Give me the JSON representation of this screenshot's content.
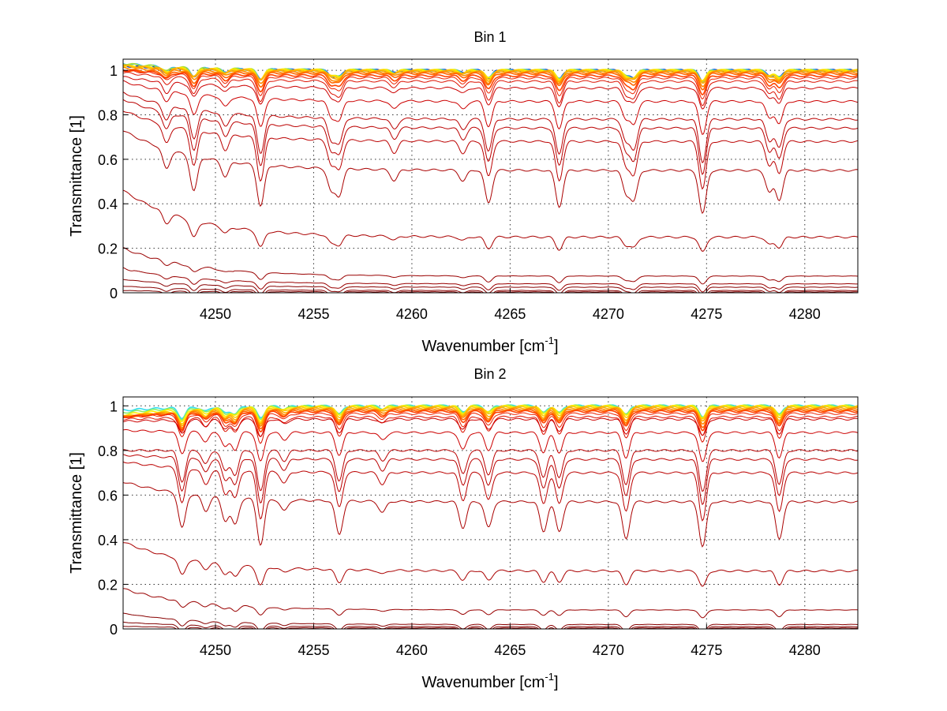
{
  "chart_data": [
    {
      "type": "line",
      "title": "Bin 1",
      "xlabel": {
        "main": "Wavenumber [cm",
        "sup": "-1",
        "end": "]"
      },
      "ylabel": "Transmittance [1]",
      "xlim": [
        4245.3,
        4282.7
      ],
      "ylim": [
        0,
        1.05
      ],
      "xticks": [
        4250,
        4255,
        4260,
        4265,
        4270,
        4275,
        4280
      ],
      "yticks": [
        0,
        0.2,
        0.4,
        0.6,
        0.8,
        1
      ],
      "ytick_labels": [
        "0",
        "0.2",
        "0.4",
        "0.6",
        "0.8",
        "1"
      ],
      "grid": true,
      "absorption_lines": [
        [
          4247.5,
          0.5
        ],
        [
          4248.9,
          0.9
        ],
        [
          4250.5,
          0.4
        ],
        [
          4252.3,
          1.1
        ],
        [
          4255.9,
          0.6
        ],
        [
          4256.3,
          0.7
        ],
        [
          4259.1,
          0.3
        ],
        [
          4262.6,
          0.3
        ],
        [
          4263.9,
          0.9
        ],
        [
          4267.5,
          1.0
        ],
        [
          4270.9,
          0.6
        ],
        [
          4271.3,
          0.8
        ],
        [
          4274.8,
          1.2
        ],
        [
          4278.2,
          0.6
        ],
        [
          4278.7,
          0.8
        ]
      ],
      "series": [
        {
          "left": 1.02,
          "right": 1.0,
          "color": "#0033cc"
        },
        {
          "left": 1.03,
          "right": 1.0,
          "color": "#33bbee"
        },
        {
          "left": 1.03,
          "right": 1.0,
          "color": "#aadd33"
        },
        {
          "left": 1.02,
          "right": 1.0,
          "color": "#ffee00"
        },
        {
          "left": 1.02,
          "right": 0.998,
          "color": "#ffcc00"
        },
        {
          "left": 1.02,
          "right": 0.995,
          "color": "#ffaa00"
        },
        {
          "left": 1.01,
          "right": 0.99,
          "color": "#ff8800"
        },
        {
          "left": 1.0,
          "right": 0.985,
          "color": "#ff6600"
        },
        {
          "left": 1.0,
          "right": 0.975,
          "color": "#ff4400"
        },
        {
          "left": 1.0,
          "right": 0.965,
          "color": "#ee2200"
        },
        {
          "left": 0.99,
          "right": 0.95,
          "color": "#dd1100"
        },
        {
          "left": 0.97,
          "right": 0.92,
          "color": "#cc0000"
        },
        {
          "left": 0.95,
          "right": 0.86,
          "color": "#cc0000"
        },
        {
          "left": 0.9,
          "right": 0.78,
          "color": "#bb0000"
        },
        {
          "left": 0.87,
          "right": 0.74,
          "color": "#bb0000"
        },
        {
          "left": 0.82,
          "right": 0.68,
          "color": "#bb0000"
        },
        {
          "left": 0.73,
          "right": 0.55,
          "color": "#aa0000"
        },
        {
          "left": 0.46,
          "right": 0.25,
          "color": "#aa0000"
        },
        {
          "left": 0.2,
          "right": 0.075,
          "color": "#990000"
        },
        {
          "left": 0.11,
          "right": 0.04,
          "color": "#990000"
        },
        {
          "left": 0.06,
          "right": 0.025,
          "color": "#880000"
        },
        {
          "left": 0.03,
          "right": 0.01,
          "color": "#880000"
        },
        {
          "left": 0.01,
          "right": 0.004,
          "color": "#800000"
        }
      ]
    },
    {
      "type": "line",
      "title": "Bin 2",
      "xlabel": {
        "main": "Wavenumber [cm",
        "sup": "-1",
        "end": "]"
      },
      "ylabel": "Transmittance [1]",
      "xlim": [
        4245.3,
        4282.7
      ],
      "ylim": [
        0,
        1.04
      ],
      "xticks": [
        4250,
        4255,
        4260,
        4265,
        4270,
        4275,
        4280
      ],
      "yticks": [
        0,
        0.2,
        0.4,
        0.6,
        0.8,
        1
      ],
      "ytick_labels": [
        "0",
        "0.2",
        "0.4",
        "0.6",
        "0.8",
        "1"
      ],
      "grid": true,
      "absorption_lines": [
        [
          4248.3,
          0.9
        ],
        [
          4249.5,
          0.4
        ],
        [
          4250.5,
          0.6
        ],
        [
          4251.0,
          0.7
        ],
        [
          4252.3,
          1.2
        ],
        [
          4253.5,
          0.3
        ],
        [
          4256.3,
          0.9
        ],
        [
          4258.5,
          0.3
        ],
        [
          4262.6,
          0.7
        ],
        [
          4263.9,
          0.7
        ],
        [
          4266.7,
          0.8
        ],
        [
          4267.5,
          0.8
        ],
        [
          4270.9,
          1.0
        ],
        [
          4274.8,
          1.2
        ],
        [
          4278.7,
          1.0
        ]
      ],
      "series": [
        {
          "left": 0.98,
          "right": 1.0,
          "color": "#33ddee"
        },
        {
          "left": 0.97,
          "right": 1.0,
          "color": "#88ee66"
        },
        {
          "left": 0.96,
          "right": 0.998,
          "color": "#ffee00"
        },
        {
          "left": 0.95,
          "right": 0.995,
          "color": "#ffcc00"
        },
        {
          "left": 0.95,
          "right": 0.99,
          "color": "#ffaa00"
        },
        {
          "left": 0.95,
          "right": 0.985,
          "color": "#ff8800"
        },
        {
          "left": 0.95,
          "right": 0.98,
          "color": "#ff6600"
        },
        {
          "left": 0.95,
          "right": 0.975,
          "color": "#ff4400"
        },
        {
          "left": 0.95,
          "right": 0.965,
          "color": "#ee2200"
        },
        {
          "left": 0.94,
          "right": 0.95,
          "color": "#dd1100"
        },
        {
          "left": 0.93,
          "right": 0.94,
          "color": "#cc0000"
        },
        {
          "left": 0.89,
          "right": 0.88,
          "color": "#cc0000"
        },
        {
          "left": 0.8,
          "right": 0.8,
          "color": "#bb0000"
        },
        {
          "left": 0.78,
          "right": 0.76,
          "color": "#bb0000"
        },
        {
          "left": 0.75,
          "right": 0.7,
          "color": "#bb0000"
        },
        {
          "left": 0.66,
          "right": 0.57,
          "color": "#aa0000"
        },
        {
          "left": 0.39,
          "right": 0.26,
          "color": "#aa0000"
        },
        {
          "left": 0.18,
          "right": 0.085,
          "color": "#990000"
        },
        {
          "left": 0.07,
          "right": 0.02,
          "color": "#880000"
        },
        {
          "left": 0.03,
          "right": 0.01,
          "color": "#800000"
        },
        {
          "left": 0.012,
          "right": 0.004,
          "color": "#800000"
        }
      ]
    }
  ]
}
